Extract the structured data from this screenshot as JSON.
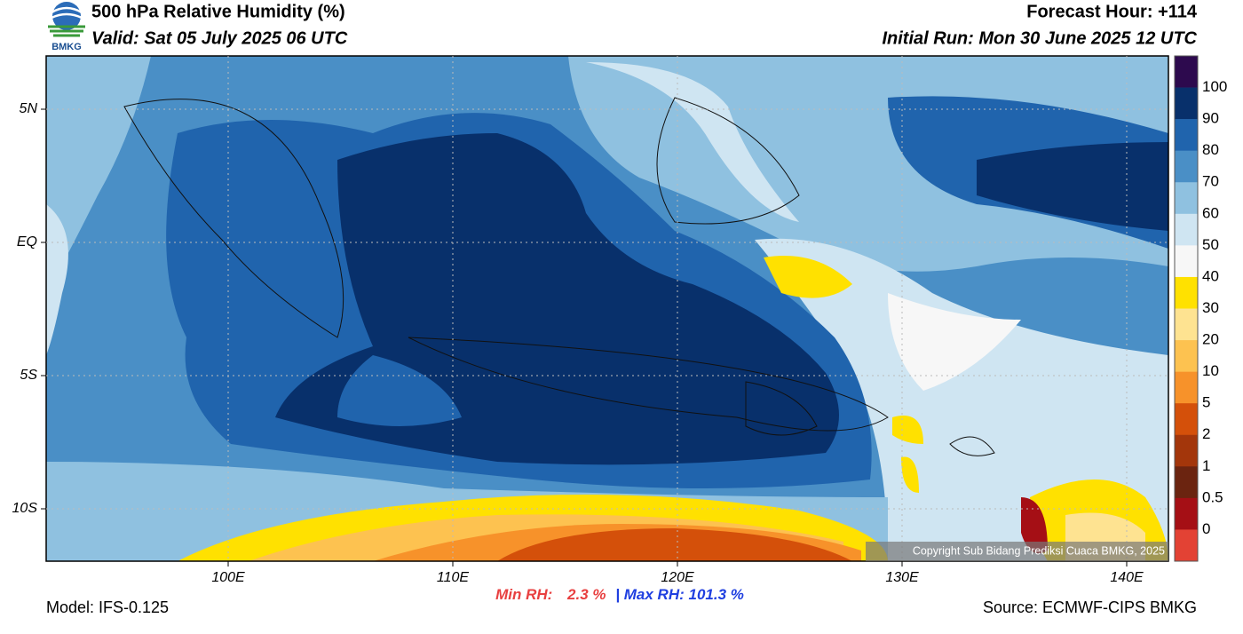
{
  "header": {
    "title": "500 hPa Relative Humidity (%)",
    "valid": "Valid: Sat 05 July 2025 06 UTC",
    "forecast_hour": "Forecast Hour: +114",
    "initial_run": "Initial Run: Mon 30 June 2025 12 UTC",
    "logo_text": "BMKG"
  },
  "map": {
    "lon_labels": [
      "100E",
      "110E",
      "120E",
      "130E",
      "140E"
    ],
    "lat_labels": [
      "5N",
      "EQ",
      "5S",
      "10S"
    ],
    "copyright": "Copyright Sub Bidang Prediksi Cuaca BMKG, 2025"
  },
  "colorbar": {
    "labels": [
      "100",
      "90",
      "80",
      "70",
      "60",
      "50",
      "40",
      "30",
      "20",
      "10",
      "5",
      "2",
      "1",
      "0.5",
      "0"
    ],
    "colors": [
      "#2d0a4e",
      "#08306b",
      "#2064ad",
      "#4a8fc6",
      "#8fc1e0",
      "#cfe5f2",
      "#f7f7f7",
      "#ffe100",
      "#fee391",
      "#fdc250",
      "#f7922a",
      "#d4500a",
      "#a3360b",
      "#6b2410",
      "#a50f15",
      "#e34234"
    ]
  },
  "footer": {
    "model": "Model: IFS-0.125",
    "min_rh_label": "Min RH:",
    "min_rh": "2.3 %",
    "separator": "|",
    "max_rh": "Max RH: 101.3 %",
    "source": "Source: ECMWF-CIPS BMKG"
  }
}
